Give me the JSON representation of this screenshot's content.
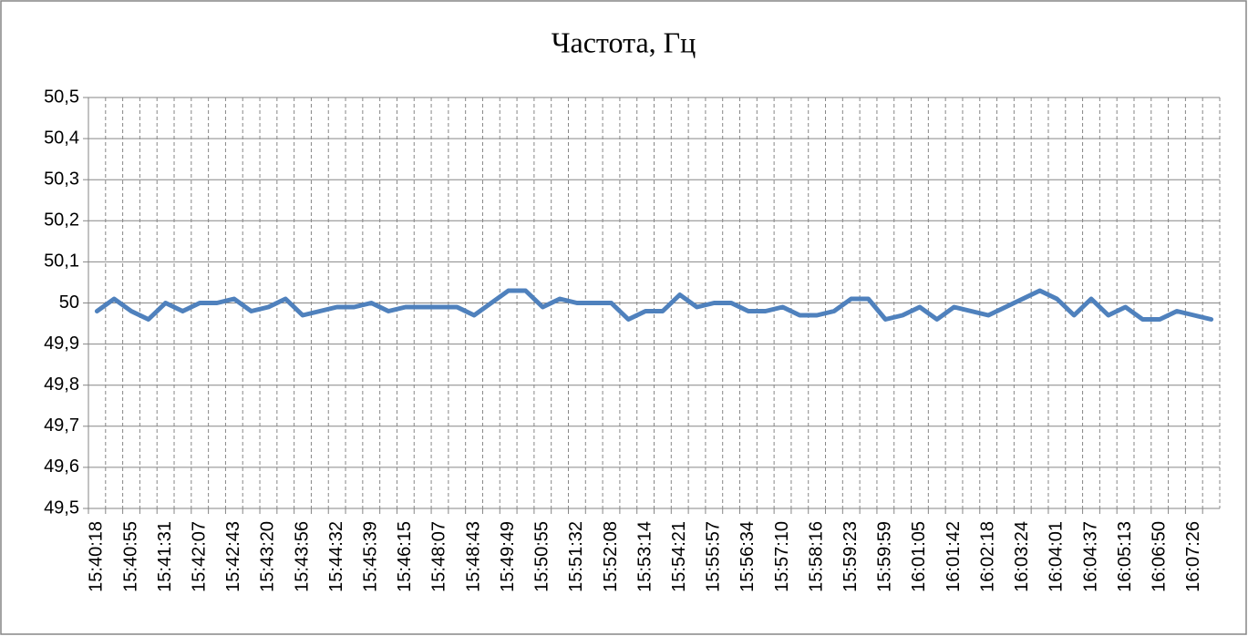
{
  "chart_data": {
    "type": "line",
    "title": "Частота, Гц",
    "categories": [
      "15:40:18",
      null,
      "15:40:55",
      null,
      "15:41:31",
      null,
      "15:42:07",
      null,
      "15:42:43",
      null,
      "15:43:20",
      null,
      "15:43:56",
      null,
      "15:44:32",
      null,
      "15:45:39",
      null,
      "15:46:15",
      null,
      "15:48:07",
      null,
      "15:48:43",
      null,
      "15:49:49",
      null,
      "15:50:55",
      null,
      "15:51:32",
      null,
      "15:52:08",
      null,
      "15:53:14",
      null,
      "15:54:21",
      null,
      "15:55:57",
      null,
      "15:56:34",
      null,
      "15:57:10",
      null,
      "15:58:16",
      null,
      "15:59:23",
      null,
      "15:59:59",
      null,
      "16:01:05",
      null,
      "16:01:42",
      null,
      "16:02:18",
      null,
      "16:03:24",
      null,
      "16:04:01",
      null,
      "16:04:37",
      null,
      "16:05:13",
      null,
      "16:06:50",
      null,
      "16:07:26",
      null
    ],
    "values": [
      49.98,
      50.01,
      49.98,
      49.96,
      50.0,
      49.98,
      50.0,
      50.0,
      50.01,
      49.98,
      49.99,
      50.01,
      49.97,
      49.98,
      49.99,
      49.99,
      50.0,
      49.98,
      49.99,
      49.99,
      49.99,
      49.99,
      49.97,
      50.0,
      50.03,
      50.03,
      49.99,
      50.01,
      50.0,
      50.0,
      50.0,
      49.96,
      49.98,
      49.98,
      50.02,
      49.99,
      50.0,
      50.0,
      49.98,
      49.98,
      49.99,
      49.97,
      49.97,
      49.98,
      50.01,
      50.01,
      49.96,
      49.97,
      49.99,
      49.96,
      49.99,
      49.98,
      49.97,
      49.99,
      50.01,
      50.03,
      50.01,
      49.97,
      50.01,
      49.97,
      49.99,
      49.96,
      49.96,
      49.98,
      49.97,
      49.96
    ],
    "color": "#4f81bd",
    "ylim": [
      49.5,
      50.5
    ],
    "yticks": [
      {
        "value": 49.5,
        "label": "49,5"
      },
      {
        "value": 49.6,
        "label": "49,6"
      },
      {
        "value": 49.7,
        "label": "49,7"
      },
      {
        "value": 49.8,
        "label": "49,8"
      },
      {
        "value": 49.9,
        "label": "49,9"
      },
      50,
      {
        "value": 50.1,
        "label": "50,1"
      },
      {
        "value": 50.2,
        "label": "50,2"
      },
      {
        "value": 50.3,
        "label": "50,3"
      },
      {
        "value": 50.4,
        "label": "50,4"
      },
      {
        "value": 50.5,
        "label": "50,5"
      }
    ],
    "grid": true
  }
}
